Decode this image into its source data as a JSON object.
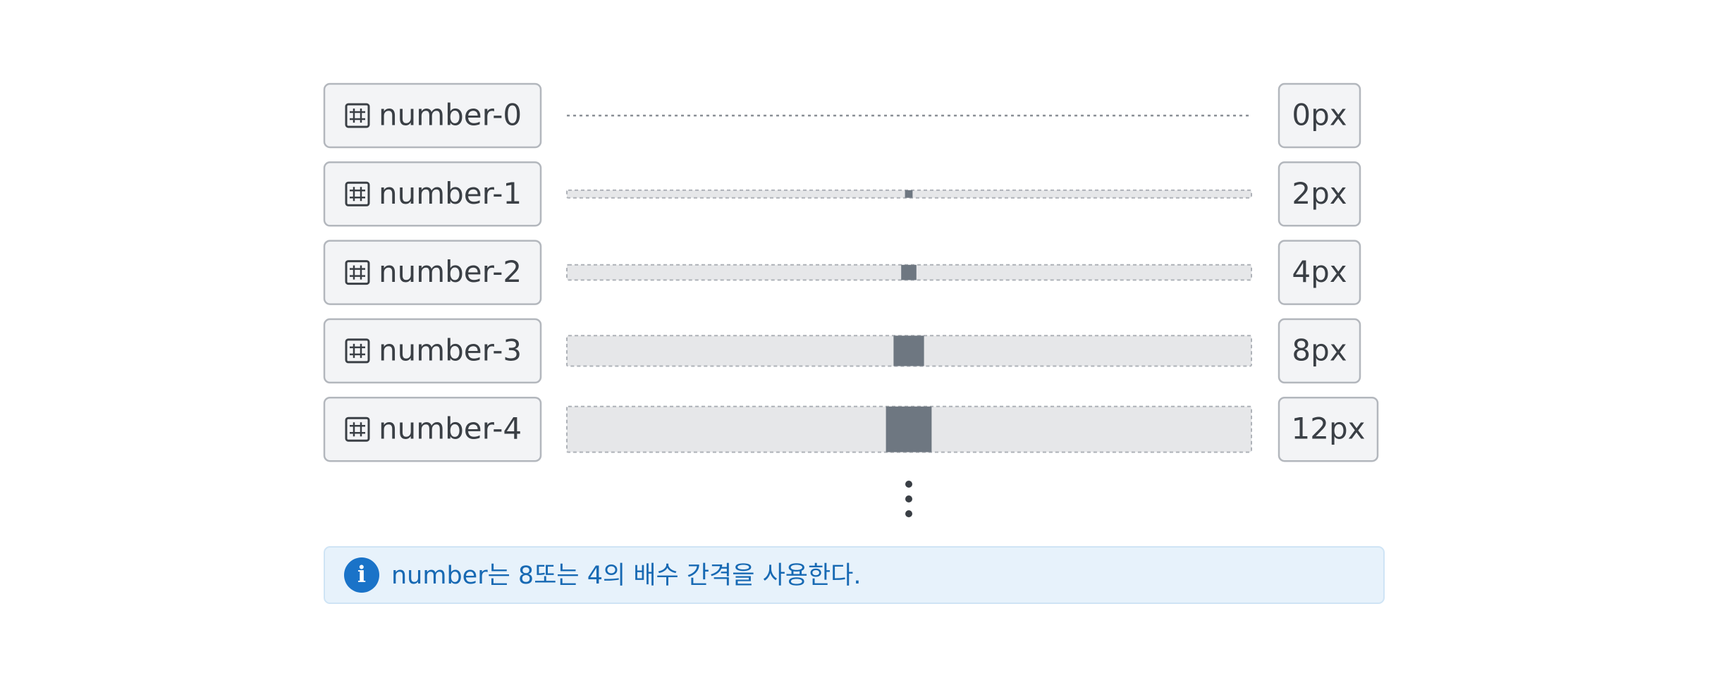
{
  "rows": [
    {
      "token": "number-0",
      "size": {
        "value": 0,
        "label": "0px"
      }
    },
    {
      "token": "number-1",
      "size": {
        "value": 2,
        "label": "2px"
      }
    },
    {
      "token": "number-2",
      "size": {
        "value": 4,
        "label": "4px"
      }
    },
    {
      "token": "number-3",
      "size": {
        "value": 8,
        "label": "8px"
      }
    },
    {
      "token": "number-4",
      "size": {
        "value": 12,
        "label": "12px"
      }
    }
  ],
  "note": "number는 8또는 4의 배수 간격을 사용한다."
}
